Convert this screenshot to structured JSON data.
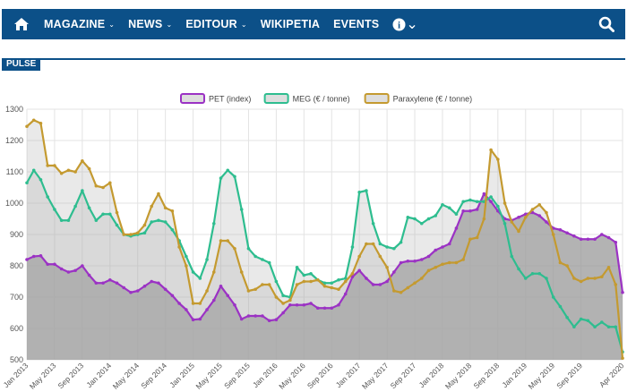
{
  "nav": {
    "items": [
      {
        "label": "MAGAZINE",
        "dropdown": true
      },
      {
        "label": "NEWS",
        "dropdown": true
      },
      {
        "label": "EDITOUR",
        "dropdown": true
      },
      {
        "label": "WIKIPETIA",
        "dropdown": false
      },
      {
        "label": "EVENTS",
        "dropdown": false
      }
    ],
    "info_symbol": "i",
    "chevron": "⌄",
    "icons": [
      "home-icon",
      "info-icon",
      "search-icon"
    ],
    "background": "#0c5088"
  },
  "section_tab": "PULSE",
  "chart_data": {
    "type": "area",
    "title": "",
    "xlabel": "",
    "ylabel": "",
    "ylim": [
      500,
      1300
    ],
    "yticks": [
      500,
      600,
      700,
      800,
      900,
      1000,
      1100,
      1200,
      1300
    ],
    "x_start": "Jan 2013",
    "x_tick_labels": [
      "Jan 2013",
      "May 2013",
      "Sep 2013",
      "Jan 2014",
      "May 2014",
      "Sep 2014",
      "Jan 2015",
      "May 2015",
      "Sep 2015",
      "Jan 2016",
      "May 2016",
      "Sep 2016",
      "Jan 2017",
      "May 2017",
      "Sep 2017",
      "Jan 2018",
      "May 2018",
      "Sep 2018",
      "Jan 2019",
      "May 2019",
      "Sep 2019",
      "Apr 2020"
    ],
    "legend_position": "top",
    "grid": true,
    "series": [
      {
        "name": "PET (index)",
        "color": "#9b32c4",
        "values": [
          820,
          830,
          832,
          805,
          805,
          790,
          780,
          785,
          800,
          770,
          745,
          745,
          755,
          745,
          730,
          715,
          720,
          735,
          750,
          745,
          725,
          705,
          680,
          660,
          628,
          630,
          660,
          690,
          735,
          705,
          675,
          630,
          640,
          640,
          640,
          625,
          628,
          650,
          675,
          675,
          675,
          680,
          665,
          665,
          665,
          675,
          710,
          765,
          785,
          760,
          740,
          740,
          750,
          780,
          810,
          815,
          815,
          820,
          830,
          850,
          860,
          870,
          920,
          975,
          975,
          980,
          1030,
          1005,
          975,
          950,
          945,
          955,
          965,
          970,
          960,
          940,
          920,
          915,
          905,
          895,
          885,
          885,
          885,
          900,
          890,
          875,
          715
        ]
      },
      {
        "name": "MEG (€ / tonne)",
        "color": "#2ebd8f",
        "values": [
          1065,
          1105,
          1075,
          1020,
          980,
          945,
          945,
          990,
          1040,
          985,
          945,
          965,
          965,
          930,
          900,
          895,
          900,
          905,
          940,
          945,
          940,
          915,
          880,
          830,
          780,
          760,
          820,
          935,
          1080,
          1105,
          1085,
          980,
          855,
          830,
          820,
          810,
          750,
          705,
          700,
          795,
          770,
          775,
          755,
          745,
          745,
          755,
          760,
          860,
          1035,
          1040,
          935,
          870,
          860,
          855,
          875,
          955,
          950,
          935,
          950,
          960,
          995,
          985,
          965,
          1005,
          1010,
          1005,
          1005,
          1020,
          990,
          935,
          830,
          790,
          760,
          775,
          775,
          760,
          700,
          670,
          635,
          605,
          630,
          625,
          605,
          620,
          605,
          605,
          525
        ]
      },
      {
        "name": "Paraxylene (€ / tonne)",
        "color": "#c49a30",
        "values": [
          1245,
          1265,
          1255,
          1120,
          1120,
          1095,
          1105,
          1100,
          1135,
          1110,
          1055,
          1050,
          1065,
          970,
          900,
          900,
          905,
          930,
          990,
          1030,
          985,
          975,
          860,
          800,
          680,
          680,
          720,
          780,
          880,
          880,
          855,
          780,
          720,
          725,
          740,
          740,
          700,
          680,
          690,
          740,
          750,
          750,
          755,
          735,
          730,
          725,
          750,
          775,
          830,
          870,
          870,
          830,
          795,
          720,
          715,
          730,
          745,
          760,
          785,
          795,
          805,
          810,
          810,
          820,
          885,
          890,
          950,
          1170,
          1140,
          1000,
          940,
          910,
          955,
          980,
          995,
          970,
          900,
          810,
          800,
          760,
          750,
          760,
          760,
          765,
          795,
          740,
          505
        ]
      }
    ]
  }
}
